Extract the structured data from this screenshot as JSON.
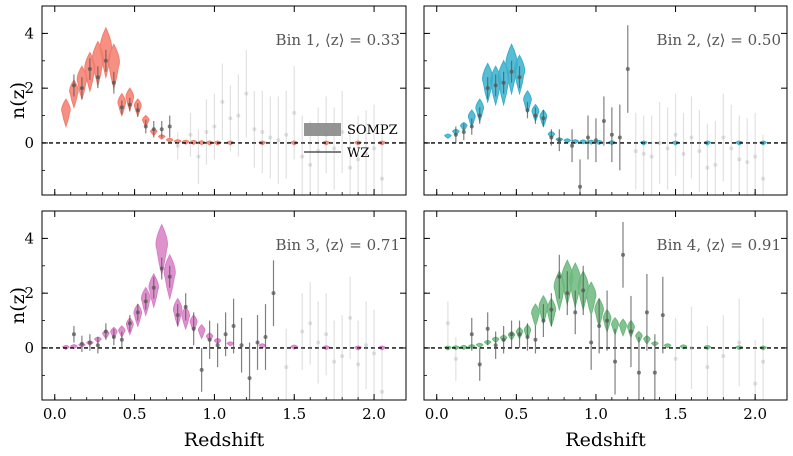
{
  "chart_data": {
    "type": "scatter",
    "figure": "Redshift distributions n(z) for four tomographic bins (SOMPZ violins vs WZ clustering points)",
    "shared_xlabel": "Redshift",
    "shared_ylabel": "n(z)",
    "xlim": [
      -0.08,
      2.2
    ],
    "ylim": [
      -1.9,
      5.0
    ],
    "xticks": [
      0.0,
      0.5,
      1.0,
      1.5,
      2.0
    ],
    "xtick_labels": [
      "0.0",
      "0.5",
      "1.0",
      "1.5",
      "2.0"
    ],
    "yticks": [
      0,
      2,
      4
    ],
    "ytick_labels": [
      "0",
      "2",
      "4"
    ],
    "zero_line": "dashed",
    "legend": {
      "location": "center-right of bin 1 panel",
      "entries": [
        {
          "label": "SOMPZ",
          "style": "shaded band"
        },
        {
          "label": "WZ",
          "style": "line"
        }
      ]
    },
    "panels": [
      {
        "title": "Bin 1, ⟨z⟩ = 0.33",
        "color": "#f47c6c",
        "sompz": {
          "z": [
            0.07,
            0.12,
            0.17,
            0.22,
            0.27,
            0.32,
            0.37,
            0.42,
            0.47,
            0.52,
            0.57,
            0.62,
            0.67,
            0.72,
            0.77,
            0.82,
            0.87,
            0.92,
            0.97,
            1.02,
            1.1,
            1.3,
            1.5,
            1.7,
            1.9,
            2.05
          ],
          "mean": [
            1.1,
            1.8,
            2.2,
            2.6,
            2.9,
            3.3,
            2.8,
            1.4,
            1.6,
            1.3,
            0.8,
            0.4,
            0.22,
            0.1,
            0.05,
            0.03,
            0.02,
            0.01,
            0.0,
            0.0,
            0.0,
            0.0,
            0.0,
            0.0,
            0.0,
            0.0
          ],
          "width": [
            0.5,
            0.5,
            0.6,
            0.7,
            0.8,
            0.9,
            0.8,
            0.4,
            0.4,
            0.3,
            0.2,
            0.12,
            0.08,
            0.05,
            0.04,
            0.03,
            0.02,
            0.01,
            0.01,
            0.01,
            0.01,
            0.01,
            0.01,
            0.01,
            0.01,
            0.01
          ]
        },
        "wz": {
          "z": [
            0.12,
            0.17,
            0.22,
            0.27,
            0.32,
            0.37,
            0.42,
            0.47,
            0.52,
            0.57,
            0.62,
            0.67,
            0.72,
            0.77,
            0.85,
            0.9,
            0.95,
            1.0,
            1.05,
            1.1,
            1.15,
            1.2,
            1.25,
            1.3,
            1.35,
            1.4,
            1.45,
            1.5,
            1.55,
            1.6,
            1.65,
            1.7,
            1.75,
            1.8,
            1.85,
            1.9,
            1.95,
            2.0,
            2.05
          ],
          "y": [
            2.1,
            2.0,
            2.7,
            2.4,
            3.0,
            2.2,
            1.3,
            1.4,
            1.2,
            0.6,
            0.5,
            0.5,
            0.6,
            -0.1,
            0.3,
            -0.5,
            0.4,
            0.6,
            1.5,
            0.9,
            1.0,
            1.8,
            0.5,
            0.4,
            0.2,
            0.1,
            0.3,
            1.1,
            -0.5,
            -0.8,
            -0.3,
            0.3,
            -0.2,
            0.4,
            -0.9,
            -0.6,
            -0.4,
            -0.2,
            -1.3
          ],
          "err": [
            0.4,
            0.4,
            0.4,
            0.4,
            0.4,
            0.4,
            0.25,
            0.25,
            0.25,
            0.25,
            0.3,
            0.3,
            0.4,
            0.5,
            0.8,
            1.0,
            1.2,
            1.2,
            1.4,
            1.2,
            1.5,
            1.6,
            1.4,
            1.5,
            1.5,
            1.6,
            1.6,
            1.7,
            1.5,
            1.6,
            1.6,
            1.4,
            1.5,
            1.5,
            1.6,
            1.6,
            1.6,
            1.6,
            1.6
          ],
          "alpha": [
            0.8,
            0.8,
            0.8,
            0.8,
            0.8,
            0.8,
            0.8,
            0.8,
            0.8,
            0.8,
            0.8,
            0.8,
            0.8,
            0.3,
            0.2,
            0.2,
            0.2,
            0.2,
            0.2,
            0.2,
            0.2,
            0.2,
            0.2,
            0.2,
            0.2,
            0.2,
            0.2,
            0.2,
            0.2,
            0.2,
            0.2,
            0.2,
            0.2,
            0.2,
            0.2,
            0.2,
            0.2,
            0.2,
            0.2
          ]
        }
      },
      {
        "title": "Bin 2, ⟨z⟩ = 0.50",
        "color": "#3ab0cc",
        "sompz": {
          "z": [
            0.07,
            0.12,
            0.17,
            0.22,
            0.27,
            0.32,
            0.37,
            0.42,
            0.47,
            0.52,
            0.57,
            0.62,
            0.67,
            0.72,
            0.77,
            0.82,
            0.87,
            0.92,
            0.97,
            1.02,
            1.1,
            1.3,
            1.5,
            1.7,
            1.9,
            2.05
          ],
          "mean": [
            0.25,
            0.4,
            0.6,
            0.9,
            1.2,
            2.2,
            2.1,
            2.2,
            2.7,
            2.5,
            1.5,
            1.1,
            0.9,
            0.3,
            0.12,
            0.08,
            0.05,
            0.04,
            0.03,
            0.02,
            0.01,
            0.0,
            0.0,
            0.0,
            0.0,
            0.0
          ],
          "width": [
            0.08,
            0.1,
            0.15,
            0.3,
            0.4,
            0.7,
            0.7,
            0.8,
            0.9,
            0.7,
            0.4,
            0.3,
            0.3,
            0.12,
            0.05,
            0.04,
            0.03,
            0.03,
            0.02,
            0.02,
            0.01,
            0.01,
            0.01,
            0.01,
            0.01,
            0.01
          ]
        },
        "wz": {
          "z": [
            0.12,
            0.17,
            0.22,
            0.27,
            0.32,
            0.37,
            0.42,
            0.47,
            0.52,
            0.57,
            0.62,
            0.67,
            0.72,
            0.77,
            0.85,
            0.9,
            0.95,
            1.0,
            1.05,
            1.1,
            1.15,
            1.2,
            1.25,
            1.3,
            1.35,
            1.4,
            1.45,
            1.5,
            1.55,
            1.6,
            1.65,
            1.7,
            1.75,
            1.8,
            1.85,
            1.9,
            1.95,
            2.0,
            2.05
          ],
          "y": [
            0.3,
            0.4,
            0.6,
            1.0,
            2.0,
            2.1,
            2.2,
            2.6,
            2.4,
            1.2,
            1.0,
            0.9,
            0.2,
            0.1,
            -0.1,
            -1.6,
            0.2,
            0.1,
            0.8,
            0.3,
            0.2,
            2.7,
            -0.3,
            -0.4,
            -0.5,
            0.0,
            -0.2,
            0.3,
            -0.4,
            0.2,
            -0.3,
            -0.9,
            -0.8,
            0.2,
            -0.2,
            -0.6,
            -0.7,
            -0.5,
            -1.3
          ],
          "err": [
            0.3,
            0.3,
            0.3,
            0.3,
            0.4,
            0.4,
            0.4,
            0.4,
            0.4,
            0.3,
            0.3,
            0.3,
            0.3,
            0.4,
            0.6,
            1.0,
            0.8,
            0.8,
            0.9,
            1.0,
            1.2,
            1.6,
            1.4,
            1.4,
            1.5,
            1.5,
            1.5,
            1.5,
            1.5,
            1.5,
            1.5,
            1.6,
            1.6,
            1.6,
            1.6,
            1.6,
            1.6,
            1.6,
            1.6
          ],
          "alpha": [
            0.8,
            0.8,
            0.8,
            0.8,
            0.8,
            0.8,
            0.8,
            0.8,
            0.8,
            0.8,
            0.8,
            0.8,
            0.8,
            0.8,
            0.8,
            0.8,
            0.8,
            0.8,
            0.8,
            0.6,
            0.6,
            0.8,
            0.3,
            0.3,
            0.2,
            0.2,
            0.2,
            0.2,
            0.2,
            0.2,
            0.2,
            0.2,
            0.2,
            0.2,
            0.2,
            0.2,
            0.2,
            0.2,
            0.2
          ]
        }
      },
      {
        "title": "Bin 3, ⟨z⟩ = 0.71",
        "color": "#d77fc5",
        "sompz": {
          "z": [
            0.07,
            0.12,
            0.17,
            0.22,
            0.27,
            0.32,
            0.37,
            0.42,
            0.47,
            0.52,
            0.57,
            0.62,
            0.67,
            0.72,
            0.77,
            0.82,
            0.87,
            0.92,
            0.97,
            1.02,
            1.1,
            1.3,
            1.5,
            1.7,
            1.9,
            2.05
          ],
          "mean": [
            0.02,
            0.05,
            0.1,
            0.18,
            0.3,
            0.5,
            0.55,
            0.6,
            0.8,
            1.2,
            1.7,
            2.1,
            3.6,
            2.6,
            1.3,
            1.1,
            0.9,
            0.6,
            0.4,
            0.25,
            0.15,
            0.08,
            0.03,
            0.01,
            0.0,
            0.0
          ],
          "width": [
            0.02,
            0.02,
            0.04,
            0.06,
            0.1,
            0.15,
            0.2,
            0.2,
            0.3,
            0.4,
            0.5,
            0.6,
            0.9,
            0.8,
            0.5,
            0.4,
            0.3,
            0.25,
            0.15,
            0.1,
            0.06,
            0.04,
            0.02,
            0.01,
            0.01,
            0.01
          ]
        },
        "wz": {
          "z": [
            0.12,
            0.17,
            0.22,
            0.27,
            0.32,
            0.37,
            0.42,
            0.47,
            0.52,
            0.57,
            0.62,
            0.67,
            0.72,
            0.77,
            0.82,
            0.87,
            0.92,
            0.97,
            1.02,
            1.07,
            1.12,
            1.17,
            1.22,
            1.27,
            1.32,
            1.37,
            1.45,
            1.55,
            1.6,
            1.65,
            1.7,
            1.75,
            1.8,
            1.85,
            1.9,
            1.95,
            2.0,
            2.05
          ],
          "y": [
            0.5,
            0.15,
            0.2,
            0.1,
            0.6,
            0.4,
            0.3,
            0.9,
            1.3,
            1.7,
            2.2,
            2.9,
            2.6,
            1.2,
            1.5,
            0.7,
            -0.8,
            0.3,
            0.1,
            0.5,
            0.8,
            0.1,
            -1.1,
            0.2,
            0.4,
            2.0,
            -0.7,
            0.6,
            0.9,
            0.2,
            0.5,
            -0.5,
            -0.3,
            1.1,
            -0.6,
            0.1,
            -0.2,
            -1.6
          ],
          "err": [
            0.3,
            0.3,
            0.3,
            0.3,
            0.3,
            0.3,
            0.3,
            0.3,
            0.3,
            0.3,
            0.4,
            0.4,
            0.4,
            0.4,
            0.5,
            0.6,
            0.8,
            0.7,
            0.8,
            0.8,
            1.0,
            1.0,
            1.3,
            1.0,
            1.2,
            1.2,
            1.4,
            1.4,
            1.5,
            1.5,
            1.5,
            1.5,
            1.5,
            1.5,
            1.6,
            1.6,
            1.6,
            1.6
          ],
          "alpha": [
            0.8,
            0.8,
            0.8,
            0.8,
            0.8,
            0.8,
            0.8,
            0.8,
            0.8,
            0.8,
            0.8,
            0.8,
            0.8,
            0.8,
            0.8,
            0.8,
            0.8,
            0.8,
            0.8,
            0.8,
            0.8,
            0.8,
            0.8,
            0.8,
            0.8,
            0.8,
            0.3,
            0.2,
            0.2,
            0.2,
            0.2,
            0.2,
            0.2,
            0.2,
            0.2,
            0.2,
            0.2,
            0.2
          ]
        }
      },
      {
        "title": "Bin 4, ⟨z⟩ = 0.91",
        "color": "#6db87e",
        "sompz": {
          "z": [
            0.07,
            0.12,
            0.17,
            0.22,
            0.27,
            0.32,
            0.37,
            0.42,
            0.47,
            0.52,
            0.57,
            0.62,
            0.67,
            0.72,
            0.77,
            0.82,
            0.87,
            0.92,
            0.97,
            1.02,
            1.07,
            1.12,
            1.17,
            1.22,
            1.27,
            1.32,
            1.37,
            1.45,
            1.55,
            1.7,
            1.9,
            2.05
          ],
          "mean": [
            0.0,
            0.01,
            0.02,
            0.05,
            0.1,
            0.2,
            0.3,
            0.35,
            0.45,
            0.55,
            0.6,
            1.2,
            1.4,
            1.3,
            2.1,
            2.4,
            2.3,
            2.1,
            1.8,
            1.3,
            1.0,
            0.8,
            0.75,
            0.7,
            0.4,
            0.3,
            0.15,
            0.08,
            0.04,
            0.02,
            0.01,
            0.0
          ],
          "width": [
            0.01,
            0.01,
            0.02,
            0.03,
            0.05,
            0.08,
            0.1,
            0.12,
            0.15,
            0.2,
            0.25,
            0.4,
            0.5,
            0.5,
            0.7,
            0.8,
            0.8,
            0.7,
            0.6,
            0.5,
            0.4,
            0.3,
            0.3,
            0.3,
            0.2,
            0.15,
            0.08,
            0.05,
            0.03,
            0.02,
            0.01,
            0.01
          ]
        },
        "wz": {
          "z": [
            0.07,
            0.12,
            0.22,
            0.27,
            0.32,
            0.37,
            0.42,
            0.47,
            0.52,
            0.57,
            0.62,
            0.67,
            0.72,
            0.77,
            0.82,
            0.87,
            0.92,
            0.97,
            1.02,
            1.07,
            1.12,
            1.17,
            1.22,
            1.27,
            1.32,
            1.37,
            1.42,
            1.5,
            1.6,
            1.7,
            1.8,
            1.9,
            2.0,
            2.05
          ],
          "y": [
            0.9,
            -0.4,
            0.5,
            -0.6,
            0.7,
            0.1,
            0.3,
            0.5,
            0.5,
            0.4,
            0.3,
            1.0,
            1.4,
            2.6,
            2.0,
            1.3,
            2.1,
            0.2,
            0.8,
            1.0,
            -0.5,
            3.4,
            0.6,
            -0.9,
            1.3,
            -0.9,
            1.2,
            -0.4,
            0.0,
            -0.7,
            -0.3,
            0.2,
            -1.3,
            -0.5
          ],
          "err": [
            0.8,
            0.8,
            0.6,
            0.6,
            0.6,
            0.5,
            0.5,
            0.5,
            0.5,
            0.5,
            0.5,
            0.6,
            0.6,
            0.8,
            0.8,
            0.8,
            0.9,
            1.0,
            1.0,
            1.1,
            1.2,
            1.2,
            1.3,
            1.3,
            1.4,
            1.4,
            1.4,
            1.5,
            1.5,
            1.5,
            1.5,
            1.6,
            1.6,
            1.6
          ],
          "alpha": [
            0.2,
            0.2,
            0.8,
            0.8,
            0.8,
            0.8,
            0.8,
            0.8,
            0.8,
            0.8,
            0.8,
            0.8,
            0.8,
            0.8,
            0.8,
            0.8,
            0.8,
            0.8,
            0.8,
            0.8,
            0.8,
            0.8,
            0.8,
            0.8,
            0.8,
            0.8,
            0.8,
            0.3,
            0.2,
            0.2,
            0.2,
            0.2,
            0.2,
            0.2
          ]
        }
      }
    ]
  }
}
